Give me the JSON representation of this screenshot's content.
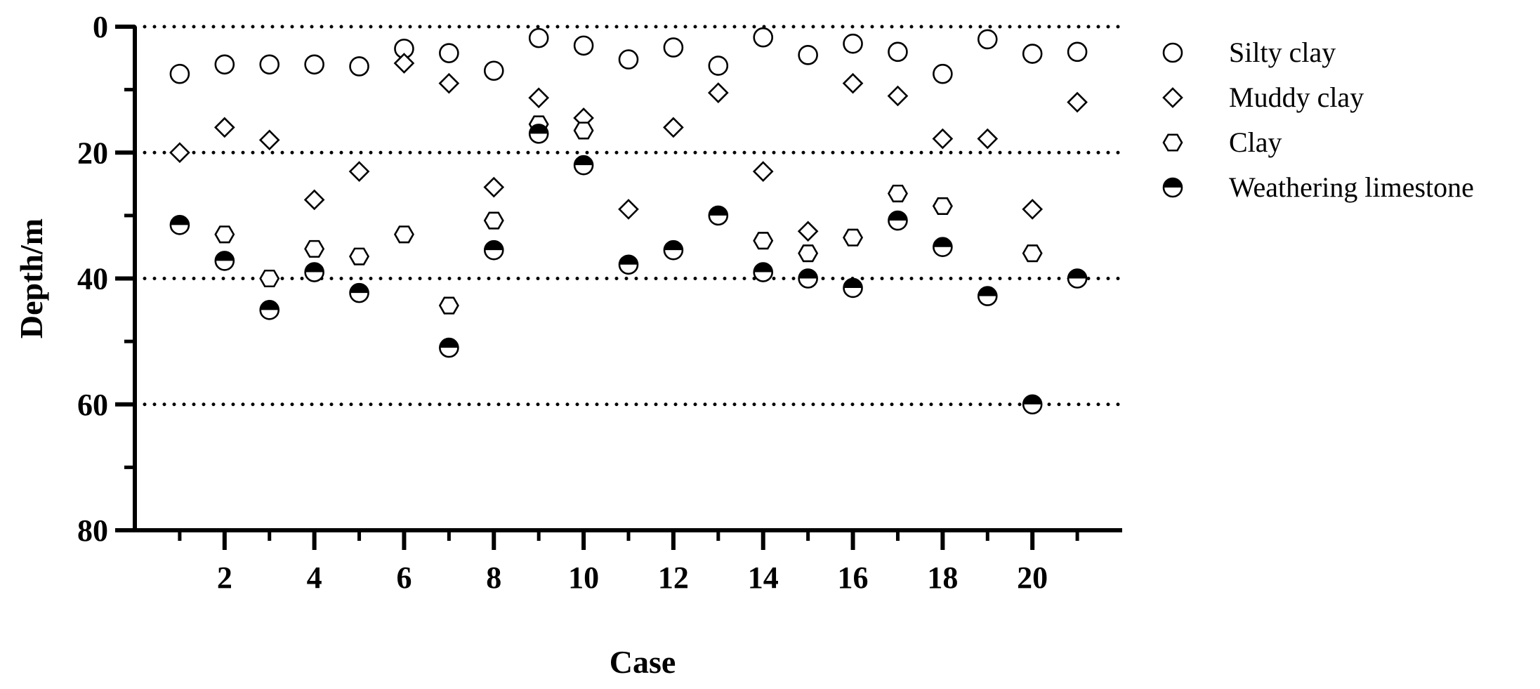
{
  "chart_data": {
    "type": "scatter",
    "xlabel": "Case",
    "ylabel": "Depth/m",
    "x_ticks": [
      2,
      4,
      6,
      8,
      10,
      12,
      14,
      16,
      18,
      20
    ],
    "y_ticks": [
      0,
      20,
      40,
      60,
      80
    ],
    "xlim": [
      0,
      22
    ],
    "ylim": [
      0,
      80
    ],
    "y_inverted": true,
    "grid": "horizontal dotted lines at 0, 20, 40, 60",
    "legend_position": "right",
    "series": [
      {
        "name": "Silty clay",
        "marker": "open-circle",
        "points": [
          [
            1,
            7.5
          ],
          [
            2,
            6
          ],
          [
            3,
            6
          ],
          [
            4,
            6
          ],
          [
            5,
            6.3
          ],
          [
            6,
            3.5
          ],
          [
            7,
            4.2
          ],
          [
            8,
            7
          ],
          [
            9,
            1.8
          ],
          [
            10,
            3
          ],
          [
            11,
            5.2
          ],
          [
            12,
            3.3
          ],
          [
            13,
            6.2
          ],
          [
            14,
            1.7
          ],
          [
            15,
            4.5
          ],
          [
            16,
            2.7
          ],
          [
            17,
            4
          ],
          [
            18,
            7.5
          ],
          [
            19,
            2
          ],
          [
            20,
            4.3
          ],
          [
            21,
            4
          ]
        ]
      },
      {
        "name": "Muddy clay",
        "marker": "open-diamond",
        "points": [
          [
            1,
            20
          ],
          [
            2,
            16
          ],
          [
            3,
            18
          ],
          [
            4,
            27.5
          ],
          [
            5,
            23
          ],
          [
            6,
            5.8
          ],
          [
            7,
            9
          ],
          [
            8,
            25.5
          ],
          [
            9,
            11.3
          ],
          [
            10,
            14.5
          ],
          [
            11,
            29
          ],
          [
            12,
            16
          ],
          [
            13,
            10.5
          ],
          [
            14,
            23
          ],
          [
            15,
            32.5
          ],
          [
            16,
            9
          ],
          [
            17,
            11
          ],
          [
            18,
            17.8
          ],
          [
            19,
            17.8
          ],
          [
            20,
            29
          ],
          [
            21,
            12
          ]
        ]
      },
      {
        "name": "Clay",
        "marker": "open-hexagon",
        "points": [
          [
            2,
            33
          ],
          [
            3,
            40
          ],
          [
            4,
            35.3
          ],
          [
            5,
            36.5
          ],
          [
            6,
            33
          ],
          [
            7,
            44.3
          ],
          [
            8,
            30.8
          ],
          [
            9,
            15.5
          ],
          [
            10,
            16.5
          ],
          [
            14,
            34
          ],
          [
            15,
            36
          ],
          [
            16,
            33.5
          ],
          [
            17,
            26.5
          ],
          [
            18,
            28.5
          ],
          [
            20,
            36
          ]
        ]
      },
      {
        "name": "Weathering limestone",
        "marker": "half-filled-circle",
        "points": [
          [
            1,
            31.5
          ],
          [
            2,
            37.2
          ],
          [
            3,
            45
          ],
          [
            4,
            39
          ],
          [
            5,
            42.3
          ],
          [
            7,
            51
          ],
          [
            8,
            35.5
          ],
          [
            9,
            17
          ],
          [
            10,
            22
          ],
          [
            11,
            37.8
          ],
          [
            12,
            35.5
          ],
          [
            13,
            30
          ],
          [
            14,
            39
          ],
          [
            15,
            40
          ],
          [
            16,
            41.5
          ],
          [
            17,
            30.8
          ],
          [
            18,
            35
          ],
          [
            19,
            42.8
          ],
          [
            20,
            60
          ],
          [
            21,
            40
          ]
        ]
      }
    ]
  }
}
